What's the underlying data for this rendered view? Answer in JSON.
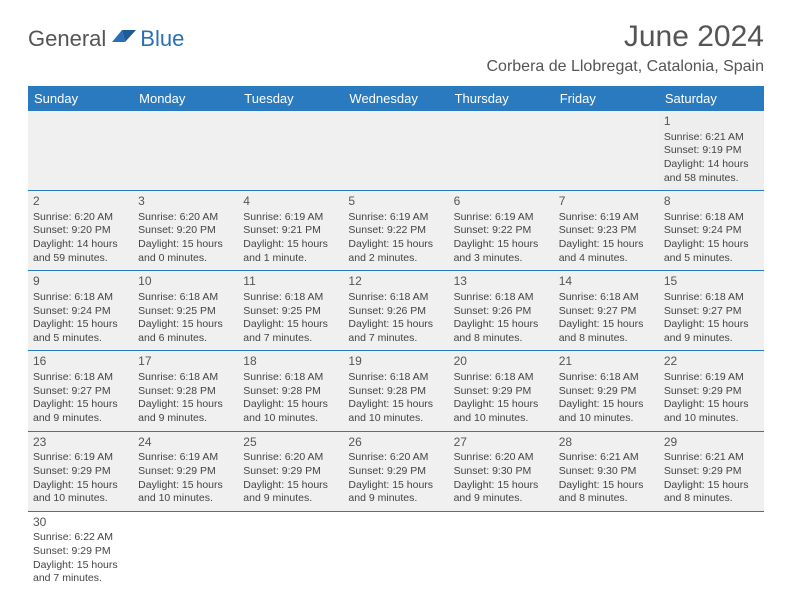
{
  "logo": {
    "part1": "General",
    "part2": "Blue"
  },
  "title": "June 2024",
  "location": "Corbera de Llobregat, Catalonia, Spain",
  "dayHeaders": [
    "Sunday",
    "Monday",
    "Tuesday",
    "Wednesday",
    "Thursday",
    "Friday",
    "Saturday"
  ],
  "colors": {
    "headerBg": "#2a7ac0",
    "headerText": "#ffffff",
    "accent": "#2a6fb5",
    "cellBg": "#f0f0f0",
    "borderColor": "#2a7ac0",
    "text": "#444444"
  },
  "weeks": [
    [
      null,
      null,
      null,
      null,
      null,
      null,
      {
        "day": "1",
        "sunrise": "Sunrise: 6:21 AM",
        "sunset": "Sunset: 9:19 PM",
        "daylight1": "Daylight: 14 hours",
        "daylight2": "and 58 minutes."
      }
    ],
    [
      {
        "day": "2",
        "sunrise": "Sunrise: 6:20 AM",
        "sunset": "Sunset: 9:20 PM",
        "daylight1": "Daylight: 14 hours",
        "daylight2": "and 59 minutes."
      },
      {
        "day": "3",
        "sunrise": "Sunrise: 6:20 AM",
        "sunset": "Sunset: 9:20 PM",
        "daylight1": "Daylight: 15 hours",
        "daylight2": "and 0 minutes."
      },
      {
        "day": "4",
        "sunrise": "Sunrise: 6:19 AM",
        "sunset": "Sunset: 9:21 PM",
        "daylight1": "Daylight: 15 hours",
        "daylight2": "and 1 minute."
      },
      {
        "day": "5",
        "sunrise": "Sunrise: 6:19 AM",
        "sunset": "Sunset: 9:22 PM",
        "daylight1": "Daylight: 15 hours",
        "daylight2": "and 2 minutes."
      },
      {
        "day": "6",
        "sunrise": "Sunrise: 6:19 AM",
        "sunset": "Sunset: 9:22 PM",
        "daylight1": "Daylight: 15 hours",
        "daylight2": "and 3 minutes."
      },
      {
        "day": "7",
        "sunrise": "Sunrise: 6:19 AM",
        "sunset": "Sunset: 9:23 PM",
        "daylight1": "Daylight: 15 hours",
        "daylight2": "and 4 minutes."
      },
      {
        "day": "8",
        "sunrise": "Sunrise: 6:18 AM",
        "sunset": "Sunset: 9:24 PM",
        "daylight1": "Daylight: 15 hours",
        "daylight2": "and 5 minutes."
      }
    ],
    [
      {
        "day": "9",
        "sunrise": "Sunrise: 6:18 AM",
        "sunset": "Sunset: 9:24 PM",
        "daylight1": "Daylight: 15 hours",
        "daylight2": "and 5 minutes."
      },
      {
        "day": "10",
        "sunrise": "Sunrise: 6:18 AM",
        "sunset": "Sunset: 9:25 PM",
        "daylight1": "Daylight: 15 hours",
        "daylight2": "and 6 minutes."
      },
      {
        "day": "11",
        "sunrise": "Sunrise: 6:18 AM",
        "sunset": "Sunset: 9:25 PM",
        "daylight1": "Daylight: 15 hours",
        "daylight2": "and 7 minutes."
      },
      {
        "day": "12",
        "sunrise": "Sunrise: 6:18 AM",
        "sunset": "Sunset: 9:26 PM",
        "daylight1": "Daylight: 15 hours",
        "daylight2": "and 7 minutes."
      },
      {
        "day": "13",
        "sunrise": "Sunrise: 6:18 AM",
        "sunset": "Sunset: 9:26 PM",
        "daylight1": "Daylight: 15 hours",
        "daylight2": "and 8 minutes."
      },
      {
        "day": "14",
        "sunrise": "Sunrise: 6:18 AM",
        "sunset": "Sunset: 9:27 PM",
        "daylight1": "Daylight: 15 hours",
        "daylight2": "and 8 minutes."
      },
      {
        "day": "15",
        "sunrise": "Sunrise: 6:18 AM",
        "sunset": "Sunset: 9:27 PM",
        "daylight1": "Daylight: 15 hours",
        "daylight2": "and 9 minutes."
      }
    ],
    [
      {
        "day": "16",
        "sunrise": "Sunrise: 6:18 AM",
        "sunset": "Sunset: 9:27 PM",
        "daylight1": "Daylight: 15 hours",
        "daylight2": "and 9 minutes."
      },
      {
        "day": "17",
        "sunrise": "Sunrise: 6:18 AM",
        "sunset": "Sunset: 9:28 PM",
        "daylight1": "Daylight: 15 hours",
        "daylight2": "and 9 minutes."
      },
      {
        "day": "18",
        "sunrise": "Sunrise: 6:18 AM",
        "sunset": "Sunset: 9:28 PM",
        "daylight1": "Daylight: 15 hours",
        "daylight2": "and 10 minutes."
      },
      {
        "day": "19",
        "sunrise": "Sunrise: 6:18 AM",
        "sunset": "Sunset: 9:28 PM",
        "daylight1": "Daylight: 15 hours",
        "daylight2": "and 10 minutes."
      },
      {
        "day": "20",
        "sunrise": "Sunrise: 6:18 AM",
        "sunset": "Sunset: 9:29 PM",
        "daylight1": "Daylight: 15 hours",
        "daylight2": "and 10 minutes."
      },
      {
        "day": "21",
        "sunrise": "Sunrise: 6:18 AM",
        "sunset": "Sunset: 9:29 PM",
        "daylight1": "Daylight: 15 hours",
        "daylight2": "and 10 minutes."
      },
      {
        "day": "22",
        "sunrise": "Sunrise: 6:19 AM",
        "sunset": "Sunset: 9:29 PM",
        "daylight1": "Daylight: 15 hours",
        "daylight2": "and 10 minutes."
      }
    ],
    [
      {
        "day": "23",
        "sunrise": "Sunrise: 6:19 AM",
        "sunset": "Sunset: 9:29 PM",
        "daylight1": "Daylight: 15 hours",
        "daylight2": "and 10 minutes."
      },
      {
        "day": "24",
        "sunrise": "Sunrise: 6:19 AM",
        "sunset": "Sunset: 9:29 PM",
        "daylight1": "Daylight: 15 hours",
        "daylight2": "and 10 minutes."
      },
      {
        "day": "25",
        "sunrise": "Sunrise: 6:20 AM",
        "sunset": "Sunset: 9:29 PM",
        "daylight1": "Daylight: 15 hours",
        "daylight2": "and 9 minutes."
      },
      {
        "day": "26",
        "sunrise": "Sunrise: 6:20 AM",
        "sunset": "Sunset: 9:29 PM",
        "daylight1": "Daylight: 15 hours",
        "daylight2": "and 9 minutes."
      },
      {
        "day": "27",
        "sunrise": "Sunrise: 6:20 AM",
        "sunset": "Sunset: 9:30 PM",
        "daylight1": "Daylight: 15 hours",
        "daylight2": "and 9 minutes."
      },
      {
        "day": "28",
        "sunrise": "Sunrise: 6:21 AM",
        "sunset": "Sunset: 9:30 PM",
        "daylight1": "Daylight: 15 hours",
        "daylight2": "and 8 minutes."
      },
      {
        "day": "29",
        "sunrise": "Sunrise: 6:21 AM",
        "sunset": "Sunset: 9:29 PM",
        "daylight1": "Daylight: 15 hours",
        "daylight2": "and 8 minutes."
      }
    ],
    [
      {
        "day": "30",
        "sunrise": "Sunrise: 6:22 AM",
        "sunset": "Sunset: 9:29 PM",
        "daylight1": "Daylight: 15 hours",
        "daylight2": "and 7 minutes."
      },
      null,
      null,
      null,
      null,
      null,
      null
    ]
  ]
}
